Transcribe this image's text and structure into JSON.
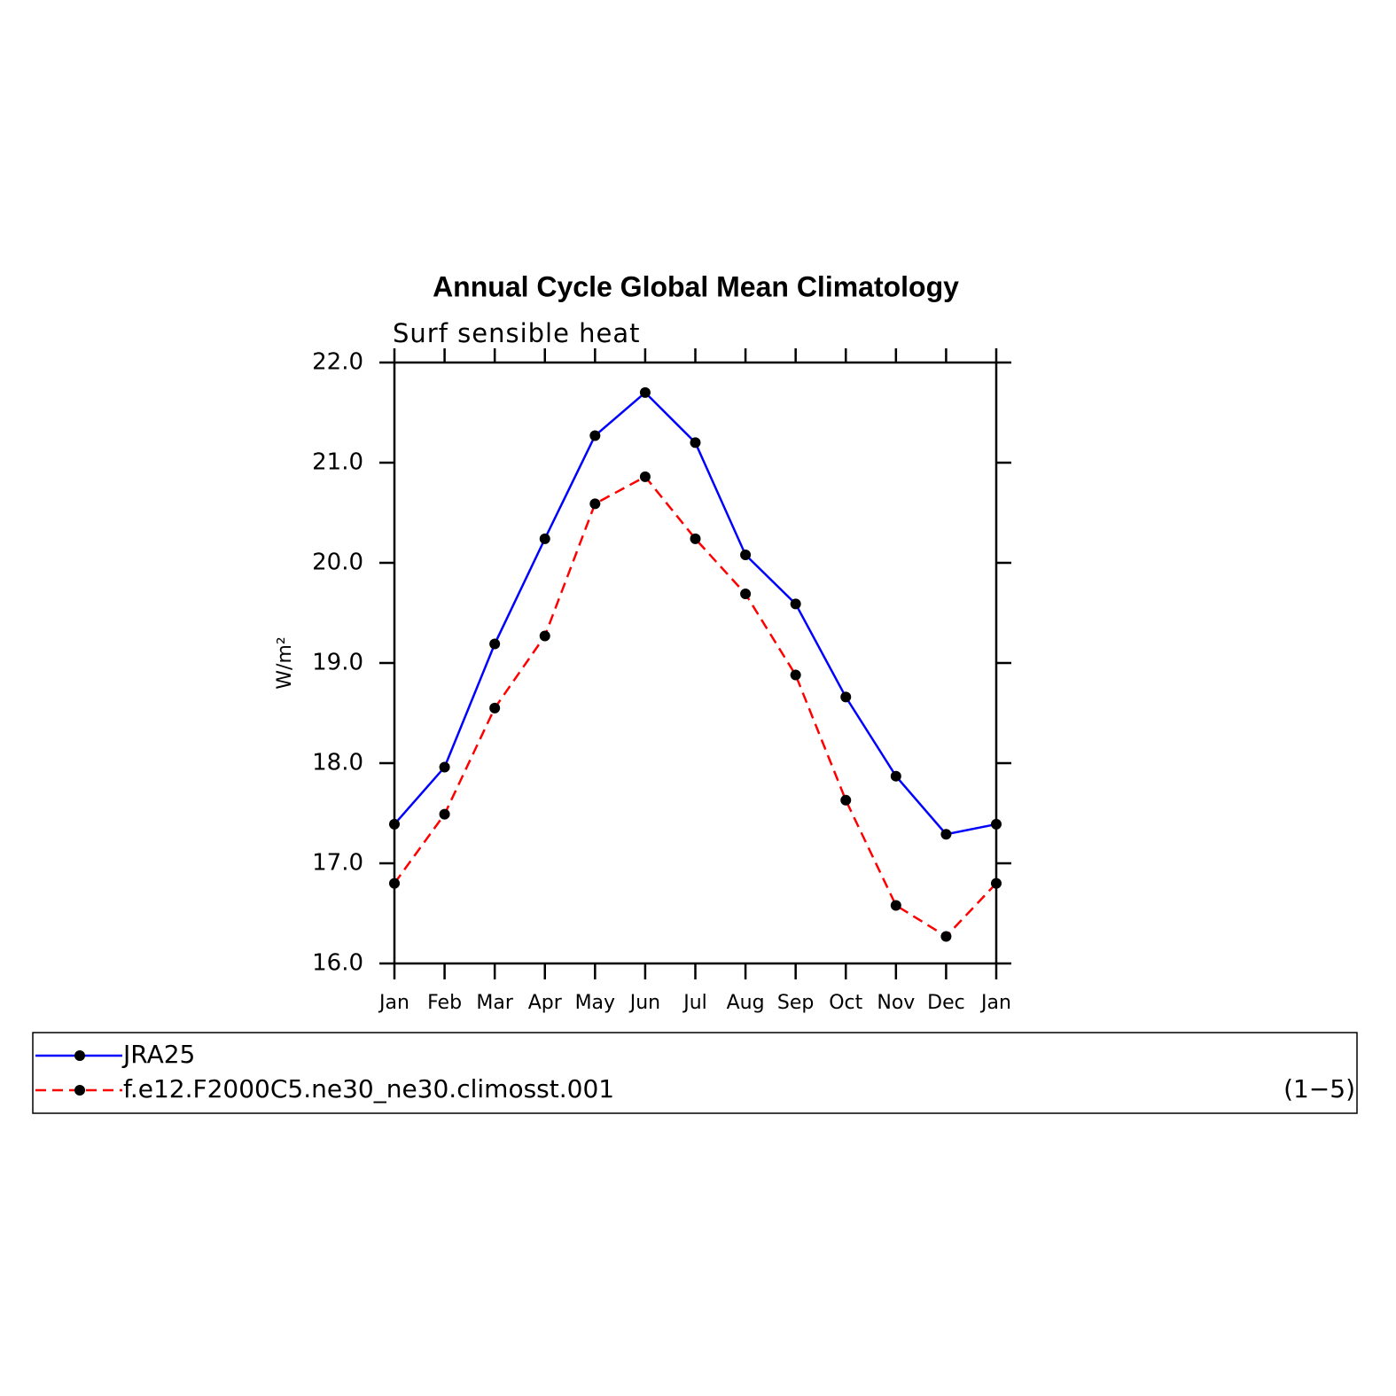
{
  "chart_data": {
    "type": "line",
    "title": "Annual Cycle Global Mean Climatology",
    "subtitle": "Surf sensible heat",
    "y_label": "W/m²",
    "annotation": "(1−5)",
    "categories": [
      "Jan",
      "Feb",
      "Mar",
      "Apr",
      "May",
      "Jun",
      "Jul",
      "Aug",
      "Sep",
      "Oct",
      "Nov",
      "Dec",
      "Jan"
    ],
    "series": [
      {
        "name": "JRA25",
        "color": "#0000ff",
        "dash": false,
        "values": [
          17.39,
          17.96,
          19.19,
          20.24,
          21.27,
          21.7,
          21.2,
          20.08,
          19.59,
          18.66,
          17.87,
          17.29,
          17.39
        ]
      },
      {
        "name": "f.e12.F2000C5.ne30_ne30.climosst.001",
        "color": "#ff0000",
        "dash": true,
        "values": [
          16.8,
          17.49,
          18.55,
          19.27,
          20.59,
          20.86,
          20.24,
          19.69,
          18.88,
          17.63,
          16.58,
          16.27,
          16.8
        ]
      }
    ],
    "ylim": [
      16,
      22
    ],
    "yticks": [
      {
        "value": 16,
        "label": "16.0"
      },
      {
        "value": 17,
        "label": "17.0"
      },
      {
        "value": 18,
        "label": "18.0"
      },
      {
        "value": 19,
        "label": "19.0"
      },
      {
        "value": 20,
        "label": "20.0"
      },
      {
        "value": 21,
        "label": "21.0"
      },
      {
        "value": 22,
        "label": "22.0"
      }
    ]
  }
}
